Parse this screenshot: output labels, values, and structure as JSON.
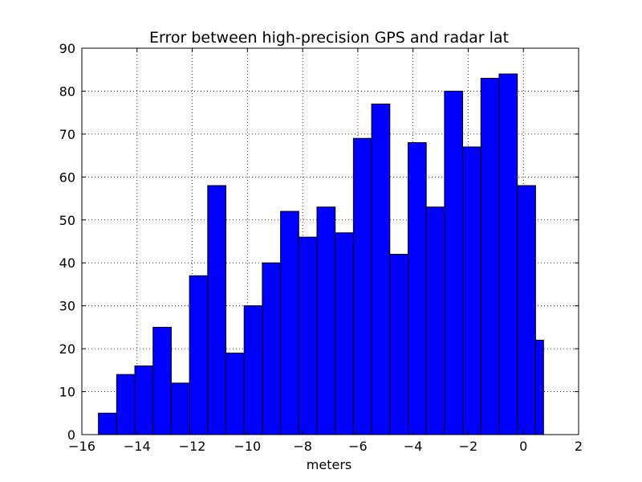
{
  "chart_data": {
    "type": "bar",
    "title": "Error between high-precision GPS and radar lat",
    "xlabel": "meters",
    "ylabel": "",
    "xlim": [
      -16,
      2
    ],
    "ylim": [
      0,
      90
    ],
    "xticks": [
      -16,
      -14,
      -12,
      -10,
      -8,
      -6,
      -4,
      -2,
      0,
      2
    ],
    "xtick_labels": [
      "−16",
      "−14",
      "−12",
      "−10",
      "−8",
      "−6",
      "−4",
      "−2",
      "0",
      "2"
    ],
    "yticks": [
      0,
      10,
      20,
      30,
      40,
      50,
      60,
      70,
      80,
      90
    ],
    "ytick_labels": [
      "0",
      "10",
      "20",
      "30",
      "40",
      "50",
      "60",
      "70",
      "80",
      "90"
    ],
    "grid": true,
    "bin_edges": [
      -15.4,
      -14.74,
      -14.08,
      -13.42,
      -12.76,
      -12.1,
      -11.44,
      -10.78,
      -10.12,
      -9.46,
      -8.8,
      -8.14,
      -7.48,
      -6.82,
      -6.16,
      -5.5,
      -4.84,
      -4.18,
      -3.52,
      -2.86,
      -2.2,
      -1.54,
      -0.88,
      -0.22,
      0.44,
      0.73
    ],
    "bin_edges_note_removed": true,
    "values": [
      5,
      14,
      16,
      25,
      12,
      37,
      58,
      19,
      30,
      40,
      52,
      46,
      53,
      47,
      69,
      77,
      42,
      68,
      53,
      80,
      67,
      83,
      84,
      58,
      22
    ],
    "bar_color": "#0000ff",
    "edge_color": "#000000"
  }
}
